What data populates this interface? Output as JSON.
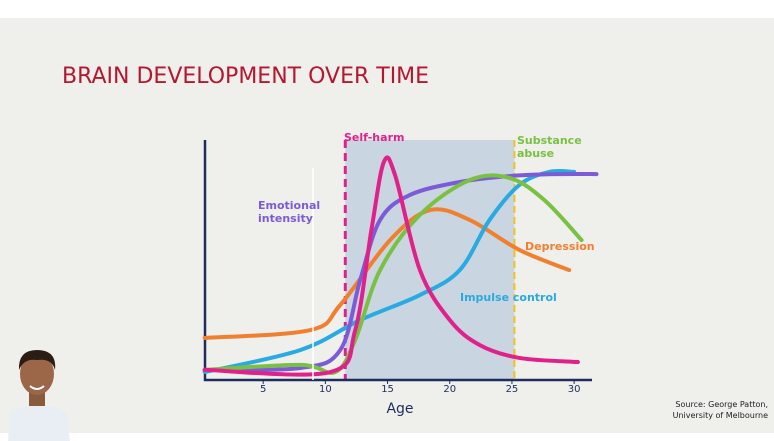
{
  "chart_data": {
    "type": "line",
    "title": "BRAIN DEVELOPMENT OVER TIME",
    "x_label": "Age",
    "xlim": [
      0,
      32
    ],
    "xticks": [
      5,
      10,
      15,
      20,
      25,
      30
    ],
    "ylim": [
      0,
      100
    ],
    "highlight": {
      "xrange": [
        11.6,
        25.2
      ],
      "color": "#c9d5e0"
    },
    "series": [
      {
        "name": "Depression",
        "color": "#f07f30",
        "x": [
          0.3,
          8.8,
          11.2,
          15.2,
          18.4,
          21.6,
          25.6,
          29.6
        ],
        "values": [
          17.5,
          20.8,
          31.3,
          58.3,
          70.8,
          66.7,
          54.2,
          45.8
        ]
      },
      {
        "name": "Impulse control",
        "color": "#29aae1",
        "x": [
          0.3,
          8,
          12.8,
          17.6,
          20.8,
          23.2,
          25.6,
          28,
          30
        ],
        "values": [
          3.3,
          12.5,
          25,
          35.4,
          45.8,
          66.7,
          81.3,
          86.7,
          86.7
        ]
      },
      {
        "name": "Emotional intensity",
        "color": "#7b5cd6",
        "x": [
          0.3,
          8,
          11.2,
          12.8,
          14.4,
          16.8,
          20.8,
          24.9,
          28.8,
          31.8
        ],
        "values": [
          4.2,
          5,
          12.5,
          41.7,
          66.7,
          77.1,
          82.5,
          85,
          85.8,
          85.8
        ]
      },
      {
        "name": "Substance abuse",
        "color": "#7ac143",
        "x": [
          0.3,
          8,
          10.8,
          12.4,
          14.4,
          17.6,
          21.6,
          24.8,
          27.6,
          30.6
        ],
        "values": [
          4.2,
          6.3,
          3.3,
          16.7,
          45.8,
          68.8,
          83.3,
          84.2,
          75,
          58.3
        ]
      },
      {
        "name": "Self-harm",
        "color": "#e0218a",
        "x": [
          0.3,
          10.4,
          12.4,
          13.7,
          14.7,
          15.6,
          17.6,
          20,
          22.4,
          25.6,
          30.3
        ],
        "values": [
          4.2,
          3.3,
          20.8,
          62.5,
          90.8,
          85.4,
          45.8,
          25,
          14.6,
          9.2,
          7.5
        ]
      }
    ],
    "source_lines": [
      "Source:  George Patton,",
      "University of Melbourne"
    ]
  }
}
